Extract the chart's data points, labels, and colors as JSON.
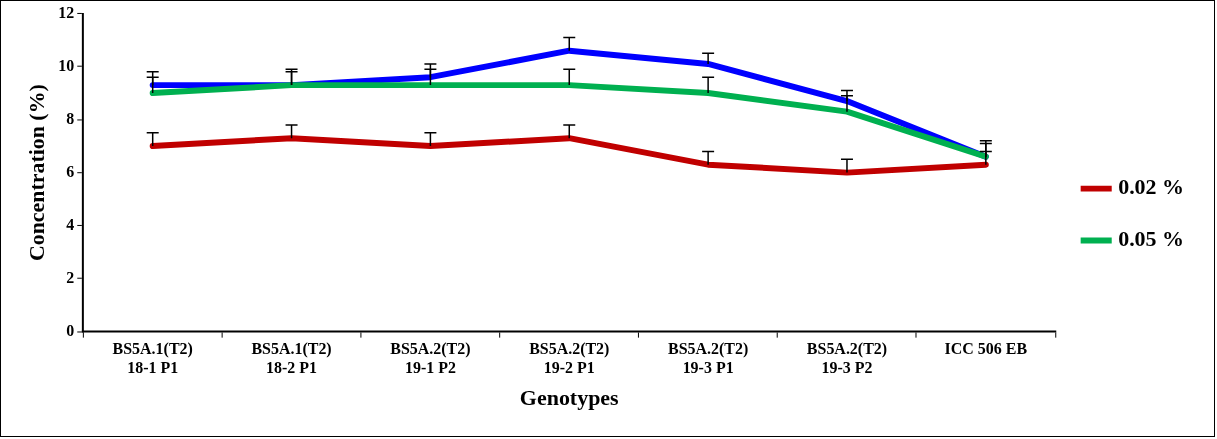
{
  "chart_data": {
    "type": "line",
    "xlabel": "Genotypes",
    "ylabel": "Concentration (%)",
    "categories": [
      "BS5A.1(T2)\n18-1 P1",
      "BS5A.1(T2)\n18-2 P1",
      "BS5A.2(T2)\n19-1 P2",
      "BS5A.2(T2)\n19-2 P1",
      "BS5A.2(T2)\n19-3 P1",
      "BS5A.2(T2)\n19-3 P2",
      "ICC 506 EB"
    ],
    "ylim": [
      0,
      12
    ],
    "yticks": [
      0,
      2,
      4,
      6,
      8,
      10,
      12
    ],
    "grid": false,
    "legend": "right",
    "marker": "none",
    "line_style": "solid",
    "series": [
      {
        "name": "0.02 %",
        "color": "#c00000",
        "values": [
          7.0,
          7.3,
          7.0,
          7.3,
          6.3,
          6.0,
          6.3
        ],
        "errors": [
          [
            7.0,
            7.5
          ],
          [
            7.3,
            7.8
          ],
          [
            7.0,
            7.5
          ],
          [
            7.3,
            7.8
          ],
          [
            6.3,
            6.8
          ],
          [
            6.0,
            6.5
          ],
          [
            6.3,
            6.8
          ]
        ]
      },
      {
        "name": "0.05 %",
        "color": "#00b050",
        "values": [
          9.0,
          9.3,
          9.3,
          9.3,
          9.0,
          8.3,
          6.6
        ],
        "errors": [
          [
            9.0,
            9.6
          ],
          [
            9.3,
            9.8
          ],
          [
            9.3,
            9.9
          ],
          [
            9.3,
            9.9
          ],
          [
            9.0,
            9.6
          ],
          [
            8.3,
            8.9
          ],
          [
            6.6,
            7.1
          ]
        ]
      },
      {
        "color": "#0000ff",
        "values": [
          9.3,
          9.3,
          9.6,
          10.6,
          10.1,
          8.7,
          6.6
        ],
        "errors": [
          [
            9.3,
            9.8
          ],
          [
            9.3,
            9.9
          ],
          [
            9.6,
            10.1
          ],
          [
            10.6,
            11.1
          ],
          [
            10.1,
            10.5
          ],
          [
            8.7,
            9.1
          ],
          [
            6.6,
            7.2
          ]
        ]
      }
    ]
  }
}
